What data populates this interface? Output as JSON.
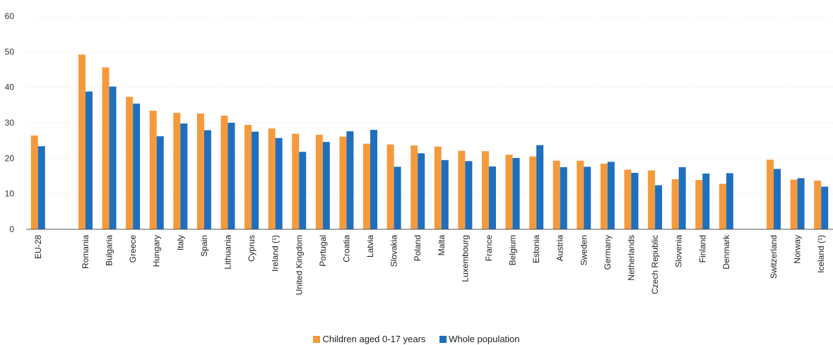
{
  "chart_data": {
    "type": "bar",
    "title": "",
    "xlabel": "",
    "ylabel": "",
    "ylim": [
      0,
      60
    ],
    "yticks": [
      0,
      10,
      20,
      30,
      40,
      50,
      60
    ],
    "grid": true,
    "legend_position": "bottom",
    "categories": [
      "EU-28",
      "",
      "Romania",
      "Bulgaria",
      "Greece",
      "Hungary",
      "Italy",
      "Spain",
      "Lithuania",
      "Cyprus",
      "Ireland (¹)",
      "United Kingdom",
      "Portugal",
      "Croatia",
      "Latvia",
      "Slovakia",
      "Poland",
      "Malta",
      "Luxembourg",
      "France",
      "Belgium",
      "Estonia",
      "Austria",
      "Sweden",
      "Germany",
      "Netherlands",
      "Czech Republic",
      "Slovenia",
      "Finland",
      "Denmark",
      "",
      "Switzerland",
      "Norway",
      "Iceland (¹)"
    ],
    "series": [
      {
        "name": "Children aged 0-17 years",
        "color": "#f59a3c",
        "values": [
          26.4,
          null,
          49.2,
          45.6,
          37.3,
          33.4,
          32.8,
          32.6,
          32.0,
          29.4,
          28.4,
          26.9,
          26.6,
          26.1,
          24.1,
          23.9,
          23.6,
          23.3,
          22.1,
          22.0,
          21.0,
          20.5,
          19.3,
          19.3,
          18.5,
          16.8,
          16.6,
          14.1,
          13.9,
          12.8,
          null,
          19.6,
          14.0,
          13.7
        ]
      },
      {
        "name": "Whole population",
        "color": "#1f6fbf",
        "values": [
          23.4,
          null,
          38.8,
          40.2,
          35.4,
          26.2,
          29.8,
          27.9,
          30.0,
          27.5,
          25.7,
          21.8,
          24.6,
          27.6,
          28.0,
          17.6,
          21.4,
          19.5,
          19.2,
          17.7,
          20.1,
          23.7,
          17.5,
          17.6,
          19.0,
          15.9,
          12.4,
          17.5,
          15.7,
          15.8,
          null,
          17.0,
          14.4,
          12.0
        ]
      }
    ]
  }
}
